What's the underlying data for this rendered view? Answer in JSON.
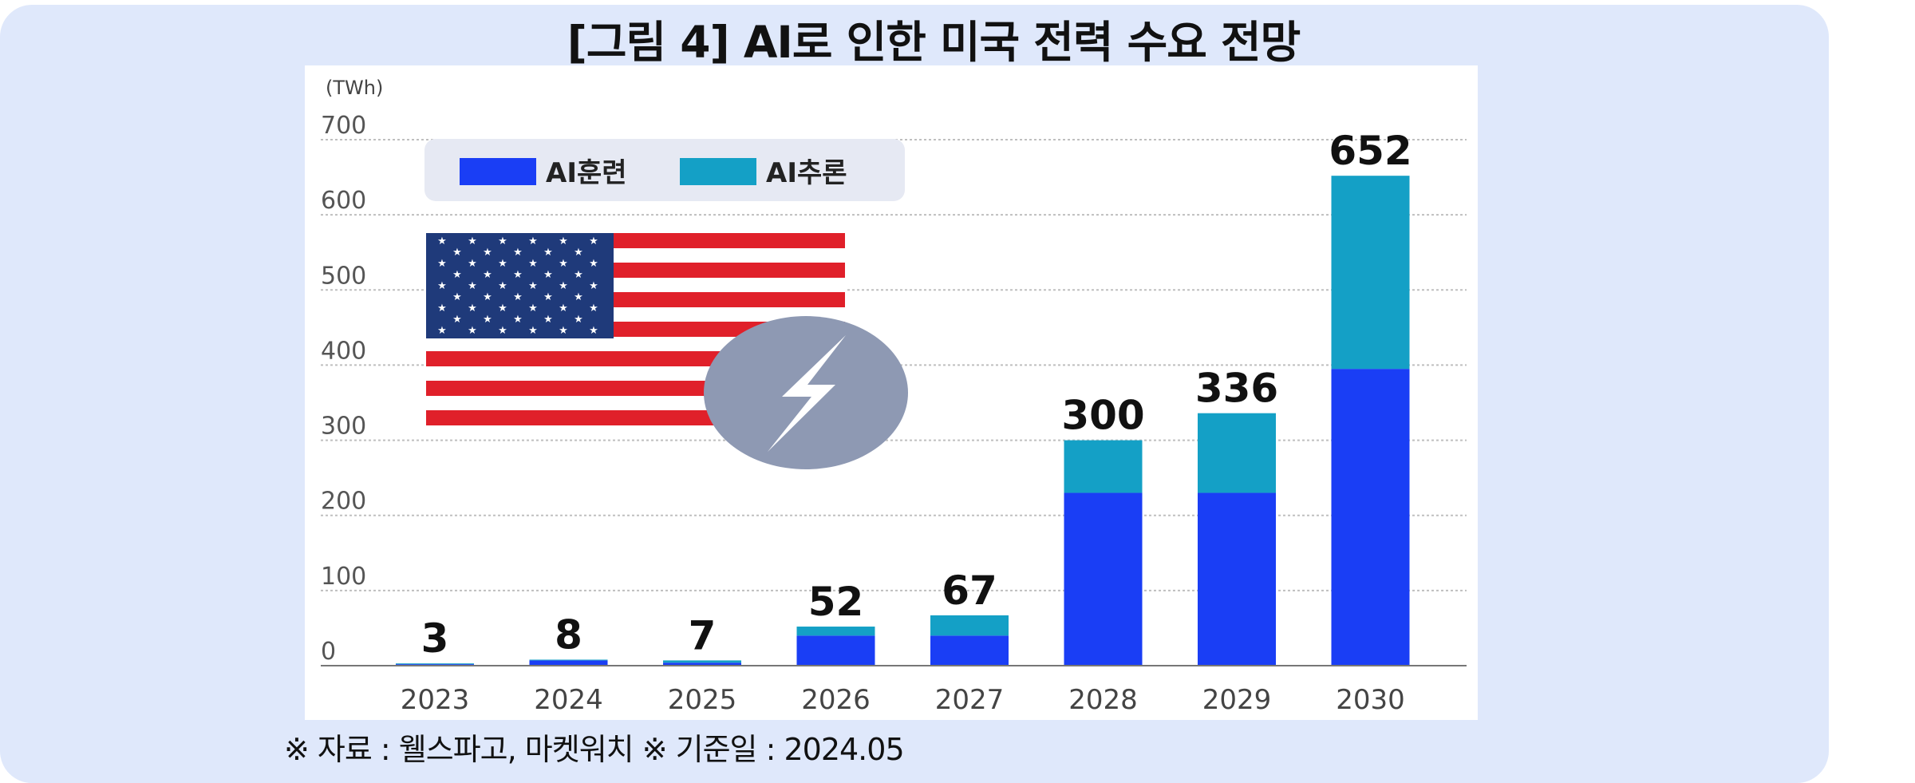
{
  "title": "[그림 4] AI로 인한 미국 전력 수요 전망",
  "source": "※ 자료 : 웰스파고, 마켓워치 ※ 기준일 : 2024.05",
  "chart_data": {
    "type": "bar",
    "stacked": true,
    "ylabel": "(TWh)",
    "ylim": [
      0,
      700
    ],
    "yticks": [
      0,
      100,
      200,
      300,
      400,
      500,
      600,
      700
    ],
    "grid": true,
    "legend_position": "top-left",
    "categories": [
      "2023",
      "2024",
      "2025",
      "2026",
      "2027",
      "2028",
      "2029",
      "2030"
    ],
    "series": [
      {
        "name": "AI훈련",
        "color": "#1a3ef5",
        "values": [
          2,
          7,
          4,
          40,
          40,
          230,
          230,
          395
        ]
      },
      {
        "name": "AI추론",
        "color": "#14a0c6",
        "values": [
          1,
          1,
          3,
          12,
          27,
          70,
          106,
          257
        ]
      }
    ],
    "totals": [
      "3",
      "8",
      "7",
      "52",
      "67",
      "300",
      "336",
      "652"
    ]
  },
  "decorations": {
    "flag": "us-flag-icon",
    "bolt": "lightning-bolt-icon",
    "flag_colors": {
      "red": "#e0202a",
      "blue": "#1f3a7a",
      "white": "#ffffff"
    },
    "bolt_circle_color": "#8e99b3"
  }
}
